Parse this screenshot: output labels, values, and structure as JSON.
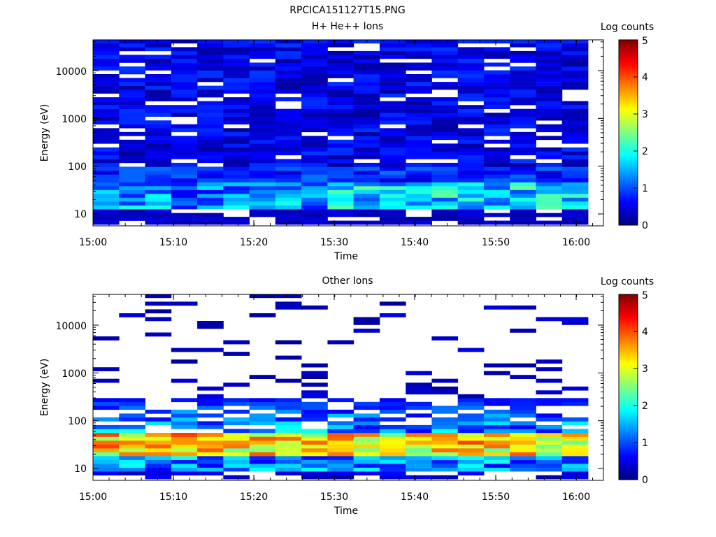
{
  "title": "RPCICA151127T15.PNG",
  "chart_data": [
    {
      "type": "heatmap",
      "title": "H+ He++ Ions",
      "xlabel": "Time",
      "ylabel": "Energy (eV)",
      "xticks": [
        "15:00",
        "15:10",
        "15:20",
        "15:30",
        "15:40",
        "15:50",
        "16:00"
      ],
      "yticks": [
        "10",
        "100",
        "1000",
        "10000"
      ],
      "yscale": "log",
      "colorbar_label": "Log counts",
      "colorbar_ticks": [
        "0",
        "1",
        "2",
        "3",
        "4",
        "5"
      ],
      "zlim": [
        0,
        5
      ],
      "time_columns": 19,
      "energy_range": [
        6,
        45000
      ],
      "dominant_values": {
        "low_energy_15_to_40_eV": 1.6,
        "above_100_eV": 0.5
      }
    },
    {
      "type": "heatmap",
      "title": "Other Ions",
      "xlabel": "Time",
      "ylabel": "Energy (eV)",
      "xticks": [
        "15:00",
        "15:10",
        "15:20",
        "15:30",
        "15:40",
        "15:50",
        "16:00"
      ],
      "yticks": [
        "10",
        "100",
        "1000",
        "10000"
      ],
      "yscale": "log",
      "colorbar_label": "Log counts",
      "colorbar_ticks": [
        "0",
        "1",
        "2",
        "3",
        "4",
        "5"
      ],
      "zlim": [
        0,
        5
      ],
      "time_columns": 19,
      "energy_range": [
        6,
        45000
      ],
      "dominant_values": {
        "peak_20_to_50_eV": 3.8,
        "above_1000_eV": 0.1
      }
    }
  ]
}
